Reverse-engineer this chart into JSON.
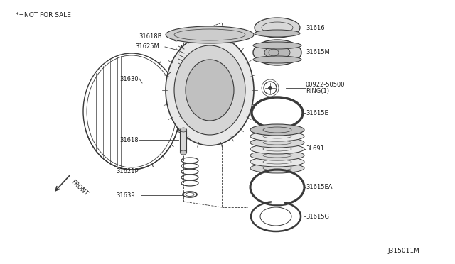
{
  "bg_color": "#ffffff",
  "line_color": "#3a3a3a",
  "text_color": "#1a1a1a",
  "fig_id": "J315011M",
  "not_for_sale": "*=NOT FOR SALE",
  "figsize": [
    6.4,
    3.72
  ],
  "dpi": 100,
  "xlim": [
    0,
    640
  ],
  "ylim": [
    0,
    372
  ]
}
